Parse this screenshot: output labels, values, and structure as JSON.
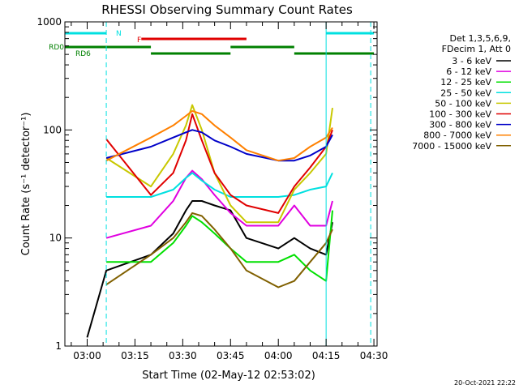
{
  "chart_data": {
    "type": "line",
    "title": "RHESSI Observing Summary Count Rates",
    "xlabel": "Start Time (02-May-12 02:53:02)",
    "ylabel": "Count Rate (s⁻¹ detector⁻¹)",
    "yscale": "log",
    "ylim": [
      1,
      1000
    ],
    "xlim": [
      "02:53",
      "04:31"
    ],
    "x_ticks": [
      "03:00",
      "03:15",
      "03:30",
      "03:45",
      "04:00",
      "04:15",
      "04:30"
    ],
    "y_ticks": [
      "1",
      "10",
      "100",
      "1000"
    ],
    "legend": {
      "position": "right",
      "header": [
        "Det 1,3,5,6,9,",
        "FDecim 1, Att 0"
      ]
    },
    "timestamp": "20-Oct-2021 22:22",
    "flags": [
      {
        "label": "N",
        "color": "#00e0e0",
        "segments": [
          [
            "02:53",
            "03:06"
          ],
          [
            "04:15",
            "04:30"
          ]
        ]
      },
      {
        "label": "F",
        "color": "#e00000",
        "segments": [
          [
            "03:17",
            "03:50"
          ]
        ]
      },
      {
        "label": "RD0",
        "color": "#008000",
        "segments": [
          [
            "02:53",
            "03:20"
          ],
          [
            "03:45",
            "04:05"
          ]
        ]
      },
      {
        "label": "RD6",
        "color": "#008000",
        "segments": [
          [
            "03:20",
            "03:45"
          ],
          [
            "04:05",
            "04:30"
          ]
        ]
      }
    ],
    "vertical_markers": [
      {
        "time": "03:06",
        "color": "#00e0e0",
        "style": "dashed"
      },
      {
        "time": "04:15",
        "color": "#00e0e0",
        "style": "solid"
      },
      {
        "time": "04:29",
        "color": "#00e0e0",
        "style": "dashed"
      }
    ],
    "x_times": [
      "03:00",
      "03:06",
      "03:20",
      "03:27",
      "03:31",
      "03:33",
      "03:36",
      "03:40",
      "03:45",
      "03:50",
      "04:00",
      "04:05",
      "04:10",
      "04:15",
      "04:17"
    ],
    "series": [
      {
        "name": "3 - 6 keV",
        "color": "#000000",
        "values": [
          1.2,
          5,
          7,
          11,
          18,
          22,
          22,
          20,
          18,
          10,
          8,
          10,
          8,
          7,
          14
        ]
      },
      {
        "name": "6 - 12 keV",
        "color": "#e000e0",
        "values": [
          null,
          10,
          13,
          22,
          36,
          42,
          35,
          25,
          17,
          13,
          13,
          20,
          13,
          13,
          22
        ]
      },
      {
        "name": "12 - 25 keV",
        "color": "#00e000",
        "values": [
          null,
          6,
          6,
          9,
          13,
          16,
          14,
          11,
          8,
          6,
          6,
          7,
          5,
          4,
          18
        ]
      },
      {
        "name": "25 - 50 keV",
        "color": "#00e0e0",
        "values": [
          null,
          24,
          24,
          28,
          36,
          40,
          34,
          28,
          24,
          24,
          24,
          25,
          28,
          30,
          40
        ]
      },
      {
        "name": "50 - 100 keV",
        "color": "#c8c800",
        "values": [
          null,
          55,
          30,
          60,
          110,
          170,
          100,
          40,
          20,
          14,
          14,
          28,
          40,
          60,
          160
        ]
      },
      {
        "name": "100 - 300 keV",
        "color": "#e00000",
        "values": [
          null,
          82,
          25,
          40,
          80,
          140,
          80,
          40,
          25,
          20,
          17,
          30,
          45,
          70,
          100
        ]
      },
      {
        "name": "300 - 800 keV",
        "color": "#0000c8",
        "values": [
          null,
          55,
          70,
          85,
          95,
          100,
          95,
          80,
          70,
          60,
          52,
          52,
          58,
          70,
          90
        ]
      },
      {
        "name": "800 - 7000 keV",
        "color": "#ff8000",
        "values": [
          null,
          52,
          85,
          110,
          135,
          150,
          140,
          110,
          85,
          65,
          52,
          55,
          70,
          85,
          105
        ]
      },
      {
        "name": "7000 - 15000 keV",
        "color": "#806000",
        "values": [
          null,
          3.7,
          7,
          10,
          14,
          17,
          16,
          12,
          8,
          5,
          3.5,
          4,
          6,
          9,
          12
        ]
      }
    ]
  }
}
